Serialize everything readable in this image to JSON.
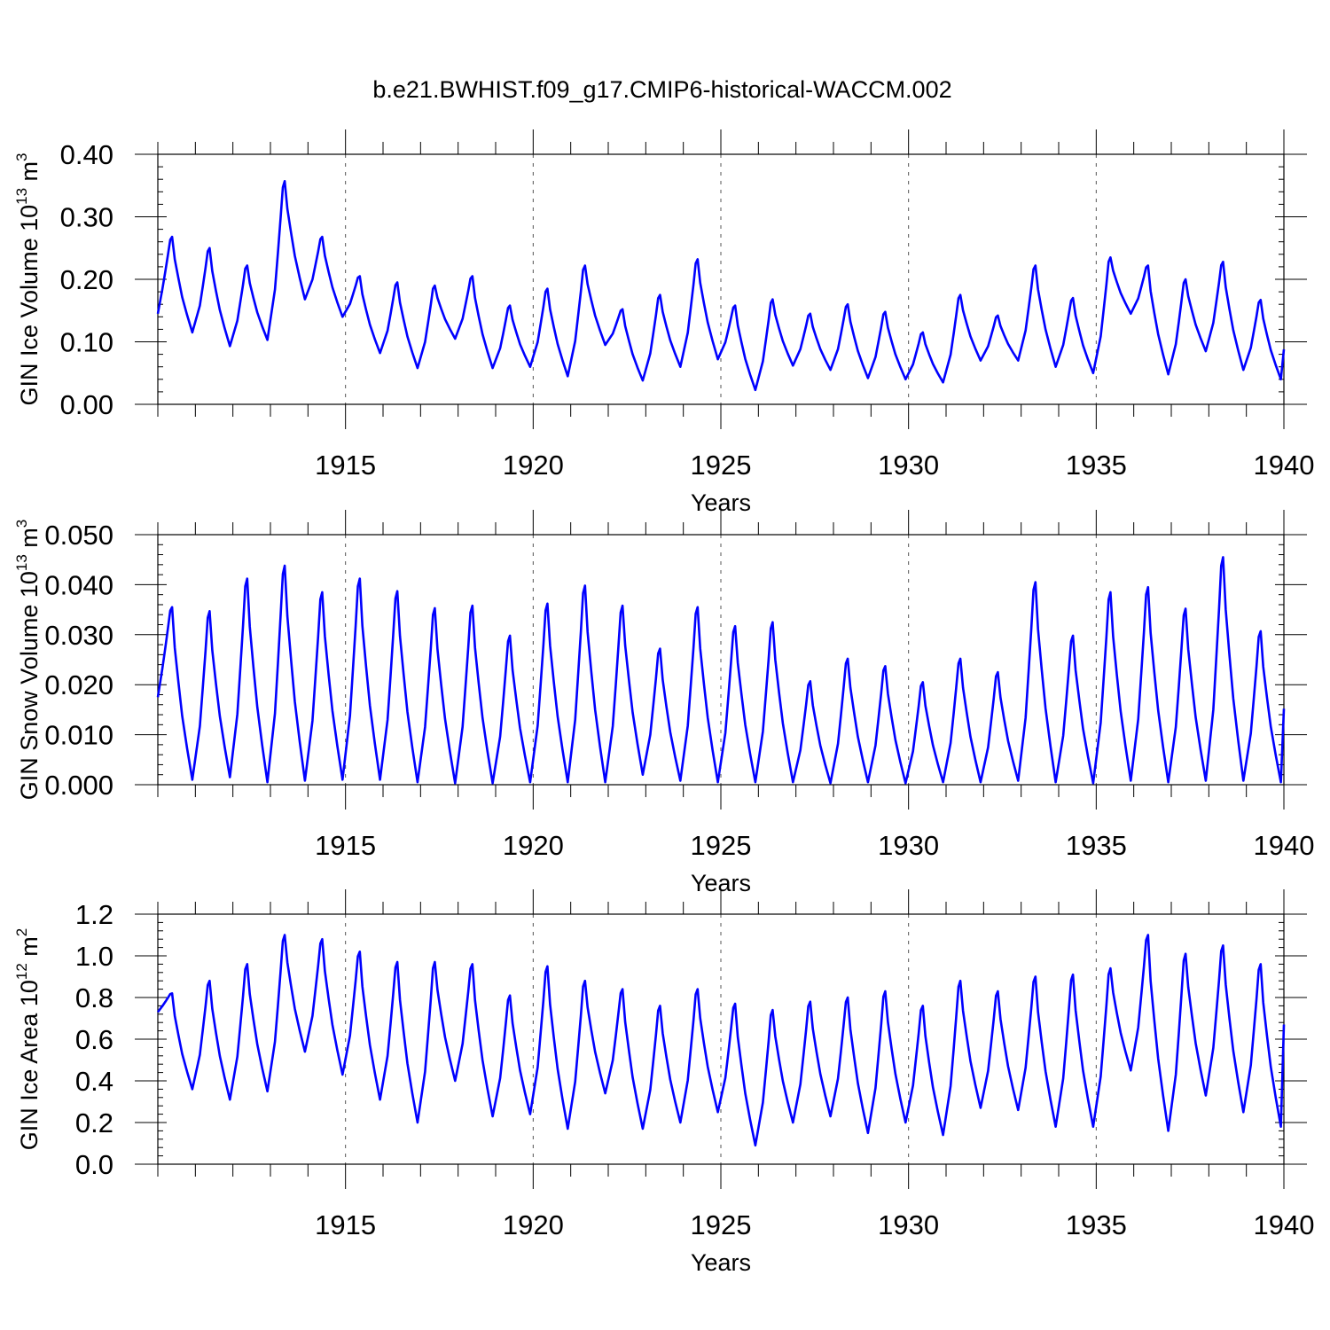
{
  "title": "b.e21.BWHIST.f09_g17.CMIP6-historical-WACCM.002",
  "colors": {
    "line": "#0000ff",
    "axis": "#000000",
    "grid": "#555555"
  },
  "chart_data": [
    {
      "type": "line",
      "ylabel_main": "GIN Ice Volume 10",
      "ylabel_exp": "13",
      "ylabel_unit": " m",
      "ylabel_unit_exp": "3",
      "xlabel": "Years",
      "xlim": [
        1910,
        1940
      ],
      "ylim": [
        0,
        0.4
      ],
      "yticks": [
        "0.00",
        "0.10",
        "0.20",
        "0.30",
        "0.40"
      ],
      "ytick_values": [
        0,
        0.1,
        0.2,
        0.3,
        0.4
      ],
      "xticks": [
        "1915",
        "1920",
        "1925",
        "1930",
        "1935",
        "1940"
      ],
      "xtick_values": [
        1915,
        1920,
        1925,
        1930,
        1935,
        1940
      ],
      "grid": "vertical-dashed",
      "series": [
        {
          "peaks": [
            0.268,
            0.25,
            0.222,
            0.357,
            0.268,
            0.205,
            0.195,
            0.19,
            0.205,
            0.158,
            0.185,
            0.222,
            0.152,
            0.175,
            0.232,
            0.158,
            0.168,
            0.145,
            0.16,
            0.148,
            0.115,
            0.175,
            0.142,
            0.222,
            0.17,
            0.235,
            0.222,
            0.2,
            0.228,
            0.167
          ],
          "troughs": [
            0.145,
            0.115,
            0.093,
            0.103,
            0.168,
            0.14,
            0.082,
            0.058,
            0.105,
            0.058,
            0.06,
            0.045,
            0.095,
            0.038,
            0.06,
            0.072,
            0.023,
            0.062,
            0.055,
            0.042,
            0.04,
            0.035,
            0.07,
            0.07,
            0.06,
            0.05,
            0.145,
            0.048,
            0.085,
            0.055,
            0.04,
            0.088
          ]
        }
      ]
    },
    {
      "type": "line",
      "ylabel_main": "GIN Snow Volume 10",
      "ylabel_exp": "13",
      "ylabel_unit": " m",
      "ylabel_unit_exp": "3",
      "xlabel": "Years",
      "xlim": [
        1910,
        1940
      ],
      "ylim": [
        0,
        0.05
      ],
      "yticks": [
        "0.000",
        "0.010",
        "0.020",
        "0.030",
        "0.040",
        "0.050"
      ],
      "ytick_values": [
        0,
        0.01,
        0.02,
        0.03,
        0.04,
        0.05
      ],
      "xticks": [
        "1915",
        "1920",
        "1925",
        "1930",
        "1935",
        "1940"
      ],
      "xtick_values": [
        1915,
        1920,
        1925,
        1930,
        1935,
        1940
      ],
      "grid": "vertical-dashed",
      "series": [
        {
          "peaks": [
            0.0355,
            0.0347,
            0.0412,
            0.0438,
            0.0385,
            0.0412,
            0.0387,
            0.0353,
            0.0358,
            0.0298,
            0.0362,
            0.0398,
            0.0358,
            0.0272,
            0.0355,
            0.0317,
            0.0325,
            0.0207,
            0.0252,
            0.0237,
            0.0205,
            0.0252,
            0.0225,
            0.0405,
            0.0298,
            0.0385,
            0.0395,
            0.0352,
            0.0455,
            0.0307
          ],
          "troughs": [
            0.0175,
            0.001,
            0.0015,
            0.0005,
            0.0008,
            0.001,
            0.001,
            0.0005,
            0.0003,
            0.0003,
            0.0005,
            0.0005,
            0.0005,
            0.002,
            0.0008,
            0.0005,
            0.0005,
            0.0005,
            0.0003,
            0.0005,
            0.0003,
            0.0005,
            0.0005,
            0.0008,
            0.0005,
            0.0003,
            0.0008,
            0.0005,
            0.0008,
            0.0008,
            0.0005,
            0.0152
          ]
        }
      ]
    },
    {
      "type": "line",
      "ylabel_main": "GIN Ice Area 10",
      "ylabel_exp": "12",
      "ylabel_unit": " m",
      "ylabel_unit_exp": "2",
      "xlabel": "Years",
      "xlim": [
        1910,
        1940
      ],
      "ylim": [
        0,
        1.2
      ],
      "yticks": [
        "0.0",
        "0.2",
        "0.4",
        "0.6",
        "0.8",
        "1.0",
        "1.2"
      ],
      "ytick_values": [
        0,
        0.2,
        0.4,
        0.6,
        0.8,
        1.0,
        1.2
      ],
      "xticks": [
        "1915",
        "1920",
        "1925",
        "1930",
        "1935",
        "1940"
      ],
      "xtick_values": [
        1915,
        1920,
        1925,
        1930,
        1935,
        1940
      ],
      "grid": "vertical-dashed",
      "series": [
        {
          "peaks": [
            0.82,
            0.88,
            0.96,
            1.1,
            1.08,
            1.02,
            0.97,
            0.97,
            0.96,
            0.81,
            0.95,
            0.88,
            0.84,
            0.76,
            0.84,
            0.77,
            0.74,
            0.78,
            0.8,
            0.83,
            0.76,
            0.88,
            0.83,
            0.9,
            0.91,
            0.94,
            1.1,
            1.01,
            1.05,
            0.96
          ],
          "troughs": [
            0.73,
            0.36,
            0.31,
            0.35,
            0.54,
            0.43,
            0.31,
            0.2,
            0.4,
            0.23,
            0.24,
            0.17,
            0.34,
            0.17,
            0.2,
            0.25,
            0.09,
            0.2,
            0.23,
            0.15,
            0.2,
            0.14,
            0.27,
            0.26,
            0.18,
            0.18,
            0.45,
            0.16,
            0.33,
            0.25,
            0.18,
            0.67
          ]
        }
      ]
    }
  ]
}
